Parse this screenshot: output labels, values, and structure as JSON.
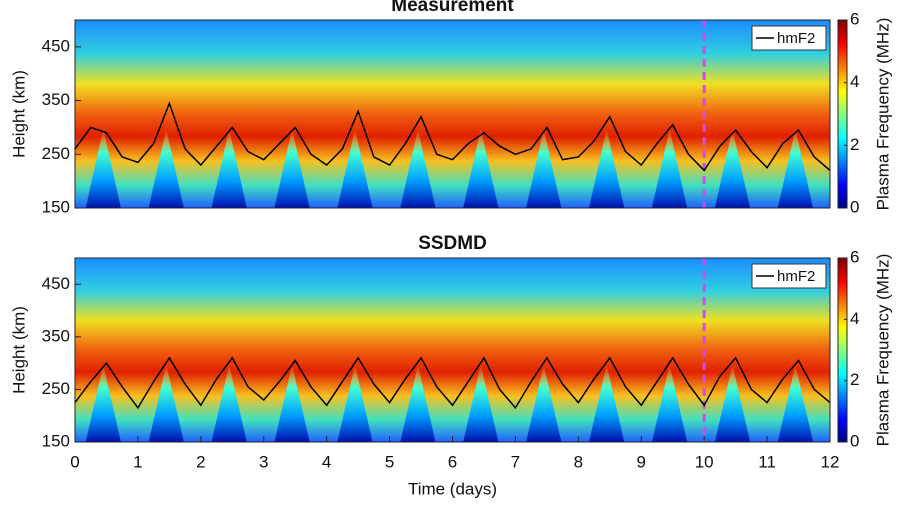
{
  "chart_data": [
    {
      "type": "line",
      "title": "Measurement",
      "ylabel": "Height (km)",
      "xlim": [
        0,
        12
      ],
      "ylim": [
        150,
        500
      ],
      "yticks": [
        150,
        250,
        350,
        450
      ],
      "vline_x": 10,
      "vline_color": "#d946ef",
      "legend": "upper right",
      "colorbar": {
        "label": "Plasma Frequency (MHz)",
        "lim": [
          0,
          6
        ],
        "ticks": [
          0,
          2,
          4,
          6
        ]
      },
      "x": [
        0,
        0.25,
        0.5,
        0.75,
        1,
        1.25,
        1.5,
        1.75,
        2,
        2.25,
        2.5,
        2.75,
        3,
        3.25,
        3.5,
        3.75,
        4,
        4.25,
        4.5,
        4.75,
        5,
        5.25,
        5.5,
        5.75,
        6,
        6.25,
        6.5,
        6.75,
        7,
        7.25,
        7.5,
        7.75,
        8,
        8.25,
        8.5,
        8.75,
        9,
        9.25,
        9.5,
        9.75,
        10,
        10.25,
        10.5,
        10.75,
        11,
        11.25,
        11.5,
        11.75,
        12
      ],
      "series": [
        {
          "name": "hmF2",
          "color": "#000000",
          "values": [
            260,
            300,
            290,
            245,
            235,
            270,
            345,
            260,
            230,
            265,
            300,
            255,
            240,
            270,
            300,
            250,
            230,
            260,
            330,
            245,
            230,
            270,
            320,
            250,
            240,
            270,
            290,
            265,
            250,
            260,
            300,
            240,
            245,
            275,
            320,
            255,
            230,
            270,
            305,
            250,
            220,
            265,
            295,
            255,
            225,
            270,
            295,
            245,
            220
          ]
        }
      ]
    },
    {
      "type": "line",
      "title": "SSDMD",
      "ylabel": "Height (km)",
      "xlabel": "Time (days)",
      "xlim": [
        0,
        12
      ],
      "xticks": [
        0,
        1,
        2,
        3,
        4,
        5,
        6,
        7,
        8,
        9,
        10,
        11,
        12
      ],
      "ylim": [
        150,
        500
      ],
      "yticks": [
        150,
        250,
        350,
        450
      ],
      "vline_x": 10,
      "vline_color": "#d946ef",
      "legend": "upper right",
      "colorbar": {
        "label": "Plasma Frequency (MHz)",
        "lim": [
          0,
          6
        ],
        "ticks": [
          0,
          2,
          4,
          6
        ]
      },
      "x": [
        0,
        0.25,
        0.5,
        0.75,
        1,
        1.25,
        1.5,
        1.75,
        2,
        2.25,
        2.5,
        2.75,
        3,
        3.25,
        3.5,
        3.75,
        4,
        4.25,
        4.5,
        4.75,
        5,
        5.25,
        5.5,
        5.75,
        6,
        6.25,
        6.5,
        6.75,
        7,
        7.25,
        7.5,
        7.75,
        8,
        8.25,
        8.5,
        8.75,
        9,
        9.25,
        9.5,
        9.75,
        10,
        10.25,
        10.5,
        10.75,
        11,
        11.25,
        11.5,
        11.75,
        12
      ],
      "series": [
        {
          "name": "hmF2",
          "color": "#000000",
          "values": [
            225,
            265,
            300,
            255,
            215,
            265,
            310,
            260,
            220,
            270,
            310,
            255,
            230,
            265,
            305,
            255,
            220,
            265,
            310,
            260,
            225,
            270,
            310,
            255,
            220,
            265,
            310,
            250,
            215,
            265,
            310,
            260,
            225,
            270,
            310,
            255,
            220,
            265,
            310,
            260,
            220,
            275,
            310,
            250,
            225,
            270,
            305,
            250,
            225
          ]
        }
      ]
    }
  ]
}
